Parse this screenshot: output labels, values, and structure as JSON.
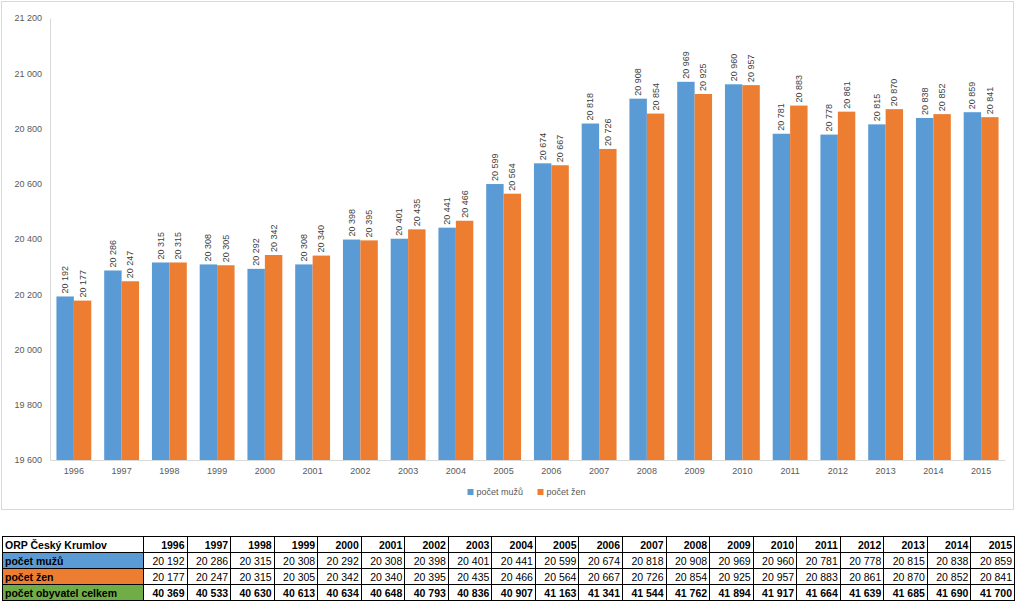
{
  "chart_data": {
    "type": "bar",
    "categories": [
      "1996",
      "1997",
      "1998",
      "1999",
      "2000",
      "2001",
      "2002",
      "2003",
      "2004",
      "2005",
      "2006",
      "2007",
      "2008",
      "2009",
      "2010",
      "2011",
      "2012",
      "2013",
      "2014",
      "2015"
    ],
    "series": [
      {
        "name": "počet mužů",
        "color": "#5b9bd5",
        "values": [
          20192,
          20286,
          20315,
          20308,
          20292,
          20308,
          20398,
          20401,
          20441,
          20599,
          20674,
          20818,
          20908,
          20969,
          20960,
          20781,
          20778,
          20815,
          20838,
          20859
        ],
        "value_labels": [
          "20 192",
          "20 286",
          "20 315",
          "20 308",
          "20 292",
          "20 308",
          "20 398",
          "20 401",
          "20 441",
          "20 599",
          "20 674",
          "20 818",
          "20 908",
          "20 969",
          "20 960",
          "20 781",
          "20 778",
          "20 815",
          "20 838",
          "20 859"
        ]
      },
      {
        "name": "počet žen",
        "color": "#ed7d31",
        "values": [
          20177,
          20247,
          20315,
          20305,
          20342,
          20340,
          20395,
          20435,
          20466,
          20564,
          20667,
          20726,
          20854,
          20925,
          20957,
          20883,
          20861,
          20870,
          20852,
          20841
        ],
        "value_labels": [
          "20 177",
          "20 247",
          "20 315",
          "20 305",
          "20 342",
          "20 340",
          "20 395",
          "20 435",
          "20 466",
          "20 564",
          "20 667",
          "20 726",
          "20 854",
          "20 925",
          "20 957",
          "20 883",
          "20 861",
          "20 870",
          "20 852",
          "20 841"
        ]
      }
    ],
    "ylim": [
      19600,
      21200
    ],
    "yticks": [
      {
        "value": 19600,
        "label": "19 600"
      },
      {
        "value": 19800,
        "label": "19 800"
      },
      {
        "value": 20000,
        "label": "20 000"
      },
      {
        "value": 20200,
        "label": "20 200"
      },
      {
        "value": 20400,
        "label": "20 400"
      },
      {
        "value": 20600,
        "label": "20 600"
      },
      {
        "value": 20800,
        "label": "20 800"
      },
      {
        "value": 21000,
        "label": "21 000"
      },
      {
        "value": 21200,
        "label": "21 200"
      }
    ],
    "grid": false,
    "legend": "bottom",
    "data_labels": true
  },
  "table": {
    "header": [
      "ORP Český Krumlov",
      "1996",
      "1997",
      "1998",
      "1999",
      "2000",
      "2001",
      "2002",
      "2003",
      "2004",
      "2005",
      "2006",
      "2007",
      "2008",
      "2009",
      "2010",
      "2011",
      "2012",
      "2013",
      "2014",
      "2015"
    ],
    "rows": [
      [
        "počet mužů",
        "20 192",
        "20 286",
        "20 315",
        "20 308",
        "20 292",
        "20 308",
        "20 398",
        "20 401",
        "20 441",
        "20 599",
        "20 674",
        "20 818",
        "20 908",
        "20 969",
        "20 960",
        "20 781",
        "20 778",
        "20 815",
        "20 838",
        "20 859"
      ],
      [
        "počet žen",
        "20 177",
        "20 247",
        "20 315",
        "20 305",
        "20 342",
        "20 340",
        "20 395",
        "20 435",
        "20 466",
        "20 564",
        "20 667",
        "20 726",
        "20 854",
        "20 925",
        "20 957",
        "20 883",
        "20 861",
        "20 870",
        "20 852",
        "20 841"
      ],
      [
        "počet obyvatel celkem",
        "40 369",
        "40 533",
        "40 630",
        "40 613",
        "40 634",
        "40 648",
        "40 793",
        "40 836",
        "40 907",
        "41 163",
        "41 341",
        "41 544",
        "41 762",
        "41 894",
        "41 917",
        "41 664",
        "41 639",
        "41 685",
        "41 690",
        "41 700"
      ]
    ]
  }
}
